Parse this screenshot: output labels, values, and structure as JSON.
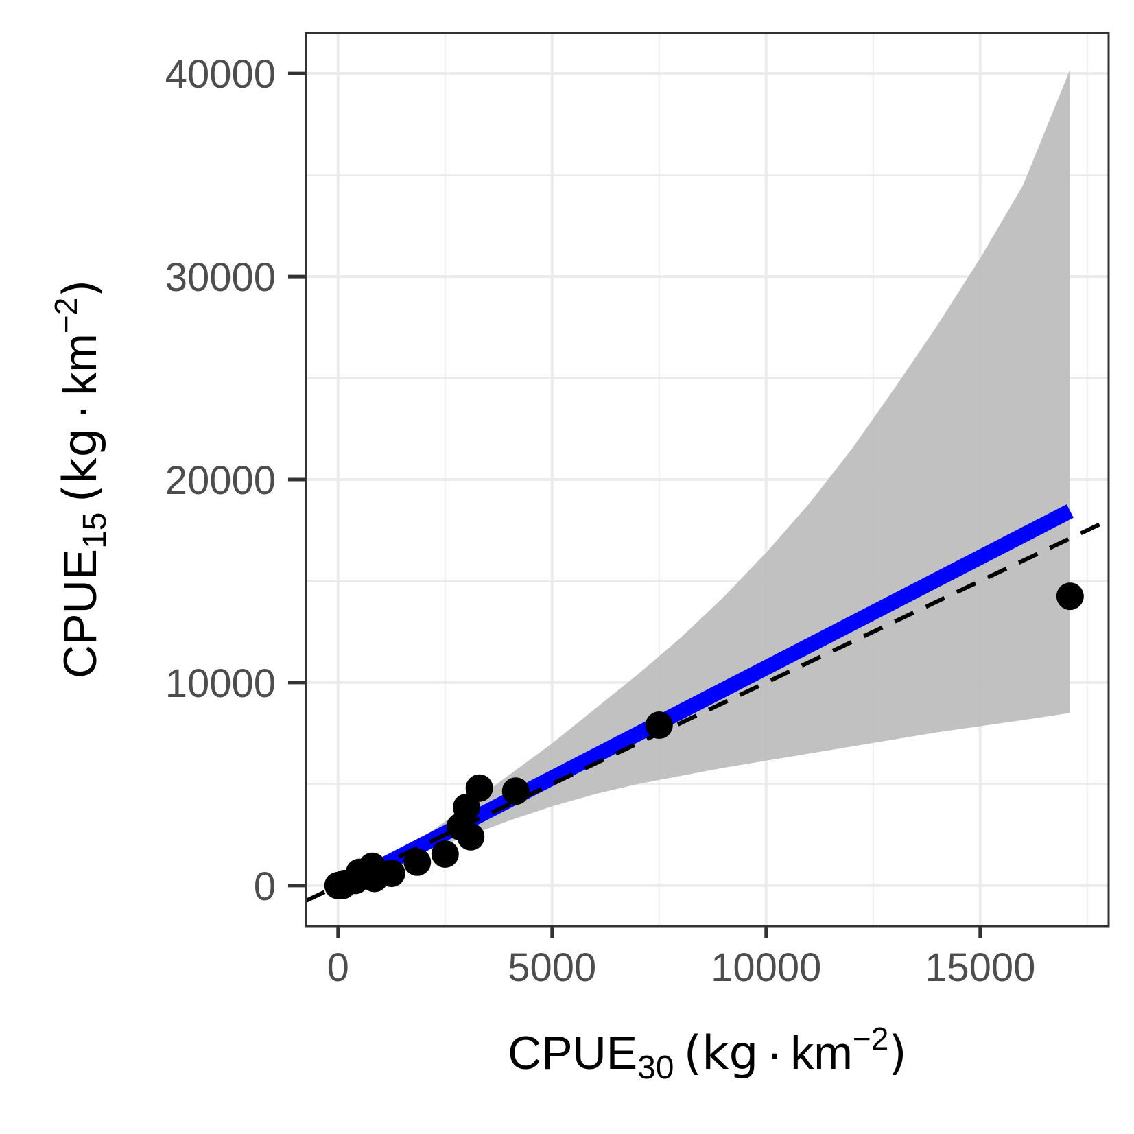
{
  "chart_data": {
    "type": "scatter",
    "xlabel": {
      "base": "CPUE",
      "sub": "30",
      "pre_unit": "(kg",
      "dot": "·",
      "unit": "km",
      "sup": "−2",
      "close": ")"
    },
    "ylabel": {
      "base": "CPUE",
      "sub": "15",
      "pre_unit": "(kg",
      "dot": "·",
      "unit": "km",
      "sup": "−2",
      "close": ")"
    },
    "xlim": [
      -750,
      18000
    ],
    "ylim": [
      -2000,
      42000
    ],
    "x_ticks": [
      0,
      5000,
      10000,
      15000
    ],
    "x_tick_labels": [
      "0",
      "5000",
      "10000",
      "15000"
    ],
    "y_ticks": [
      0,
      10000,
      20000,
      30000,
      40000
    ],
    "y_tick_labels": [
      "0",
      "10000",
      "20000",
      "30000",
      "40000"
    ],
    "x_minor_ticks": [
      2500,
      7500,
      12500,
      17500
    ],
    "y_minor_ticks": [
      5000,
      15000,
      25000,
      35000
    ],
    "grid": true,
    "points": [
      {
        "x": 0,
        "y": 0
      },
      {
        "x": 100,
        "y": 0
      },
      {
        "x": 150,
        "y": 100
      },
      {
        "x": 400,
        "y": 250
      },
      {
        "x": 500,
        "y": 650
      },
      {
        "x": 850,
        "y": 350
      },
      {
        "x": 800,
        "y": 950
      },
      {
        "x": 1250,
        "y": 600
      },
      {
        "x": 1850,
        "y": 1150
      },
      {
        "x": 2500,
        "y": 1550
      },
      {
        "x": 2850,
        "y": 2900
      },
      {
        "x": 3000,
        "y": 3850
      },
      {
        "x": 3100,
        "y": 2400
      },
      {
        "x": 3300,
        "y": 4800
      },
      {
        "x": 4150,
        "y": 4650
      },
      {
        "x": 7500,
        "y": 7900
      },
      {
        "x": 17100,
        "y": 14250
      }
    ],
    "fit_line": {
      "x": [
        1000,
        17100
      ],
      "y": [
        950,
        18450
      ],
      "color": "#0000ff"
    },
    "confidence_band": {
      "x": [
        1500,
        2000,
        3000,
        4000,
        5000,
        6000,
        7000,
        8000,
        9000,
        10000,
        11000,
        12000,
        13000,
        14000,
        15000,
        16000,
        17100
      ],
      "upper": [
        1650,
        2400,
        3900,
        5450,
        7000,
        8700,
        10400,
        12200,
        14200,
        16400,
        18800,
        21500,
        24500,
        27600,
        30900,
        34500,
        40200
      ],
      "lower": [
        1250,
        1700,
        2400,
        3200,
        3900,
        4500,
        5000,
        5400,
        5800,
        6150,
        6500,
        6850,
        7200,
        7550,
        7850,
        8150,
        8500
      ],
      "color": "#bebebe"
    },
    "reference_line": {
      "slope": 1,
      "intercept": 0,
      "style": "dashed",
      "color": "#000000"
    },
    "colors": {
      "points": "#000000",
      "fit": "#0000ff",
      "band": "#bebebe",
      "grid": "#ebebeb",
      "panel_border": "#333333"
    }
  }
}
